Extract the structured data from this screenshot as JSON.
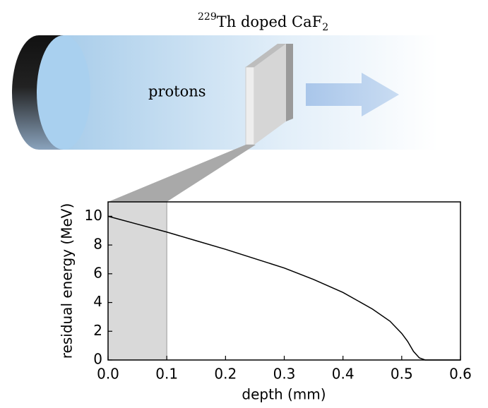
{
  "diagram": {
    "beam_label": "protons",
    "sample_label": {
      "superscript": "229",
      "text": "Th doped CaF",
      "subscript": "2"
    }
  },
  "chart_data": {
    "type": "line",
    "x": [
      0,
      0.05,
      0.1,
      0.15,
      0.2,
      0.25,
      0.3,
      0.35,
      0.4,
      0.45,
      0.48,
      0.5,
      0.51,
      0.52,
      0.53,
      0.54,
      0.6
    ],
    "values": [
      10,
      9.45,
      8.9,
      8.3,
      7.7,
      7.05,
      6.4,
      5.6,
      4.7,
      3.55,
      2.7,
      1.85,
      1.3,
      0.6,
      0.15,
      0,
      0
    ],
    "color": "#000000",
    "xlabel": "depth (mm)",
    "ylabel": "residual energy (MeV)",
    "xlim": [
      0,
      0.6
    ],
    "ylim": [
      0,
      11
    ],
    "xticks": [
      {
        "value": 0,
        "label": "0.0"
      },
      0.1,
      0.2,
      0.3,
      0.4,
      0.5,
      0.6
    ],
    "yticks": [
      0,
      2,
      4,
      6,
      8,
      10
    ],
    "highlight_xrange": [
      0,
      0.1
    ],
    "highlight_color": "#d9d9d9"
  }
}
